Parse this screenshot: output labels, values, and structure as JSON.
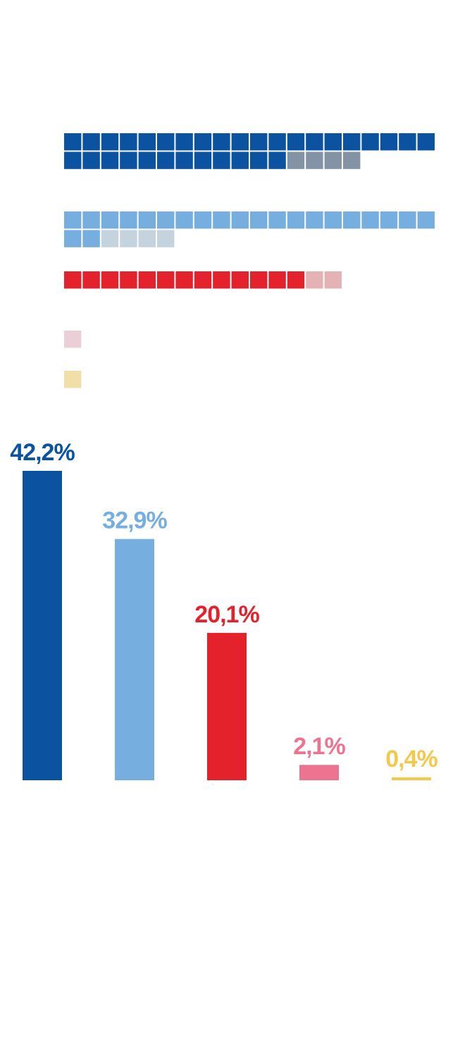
{
  "seat_chart": {
    "parties": [
      {
        "filled": 32,
        "gain": 4,
        "color": "#0b52a0",
        "gain_color": "#8393a5"
      },
      {
        "filled": 22,
        "gain": 4,
        "color": "#76aee0",
        "gain_color": "#c5d3df"
      },
      {
        "filled": 13,
        "gain": 2,
        "color": "#e3222b",
        "gain_color": "#e3b2b5"
      },
      {
        "filled": 0,
        "gain": 1,
        "color": "#e57890",
        "gain_color": "#ebcfd6"
      },
      {
        "filled": 0,
        "gain": 1,
        "color": "#f2c94c",
        "gain_color": "#f2dfa8"
      }
    ]
  },
  "chart_data": {
    "type": "bar",
    "categories": [
      "",
      "",
      "",
      "",
      ""
    ],
    "values": [
      42.2,
      32.9,
      20.1,
      2.1,
      0.4
    ],
    "labels": [
      "42,2%",
      "32,9%",
      "20,1%",
      "2,1%",
      "0,4%"
    ],
    "colors": [
      "#0b52a0",
      "#76aee0",
      "#e3222b",
      "#ee7391",
      "#f2c94c"
    ],
    "title": "",
    "xlabel": "",
    "ylabel": "",
    "ylim": [
      0,
      42.2
    ],
    "grid": false
  }
}
